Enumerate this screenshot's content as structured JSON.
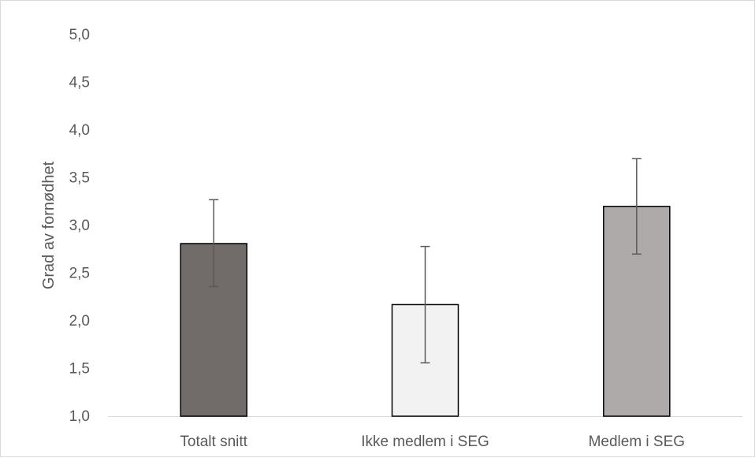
{
  "chart_data": {
    "type": "bar",
    "title": "",
    "xlabel": "",
    "ylabel": "Grad av fornødhet",
    "categories": [
      "Totalt snitt",
      "Ikke medlem i SEG",
      "Medlem i SEG"
    ],
    "values": [
      2.81,
      2.17,
      3.2
    ],
    "error_low": [
      2.36,
      1.56,
      2.7
    ],
    "error_high": [
      3.27,
      2.78,
      3.7
    ],
    "bar_colors": [
      "#716b69",
      "#f2f2f2",
      "#aeaaaa"
    ],
    "bar_edge_color": "#000000",
    "error_bar_color": "#595959",
    "ylim": [
      1.0,
      5.0
    ],
    "yticks": [
      "1,0",
      "1,5",
      "2,0",
      "2,5",
      "3,0",
      "3,5",
      "4,0",
      "4,5",
      "5,0"
    ],
    "grid": false,
    "legend": "none"
  }
}
